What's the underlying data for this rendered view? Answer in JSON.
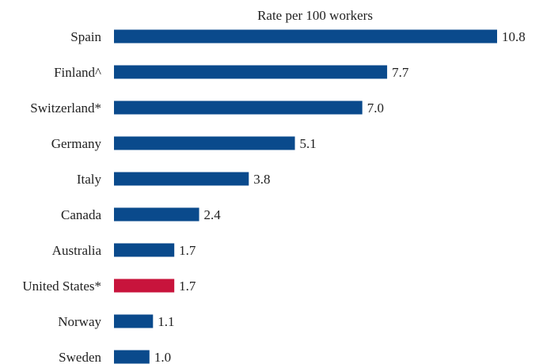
{
  "chart_data": {
    "type": "bar",
    "orientation": "horizontal",
    "title": "",
    "xlabel": "Rate per 100 workers",
    "ylabel": "",
    "categories": [
      "Spain",
      "Finland^",
      "Switzerland*",
      "Germany",
      "Italy",
      "Canada",
      "Australia",
      "United States*",
      "Norway",
      "Sweden"
    ],
    "values": [
      10.8,
      7.7,
      7.0,
      5.1,
      3.8,
      2.4,
      1.7,
      1.7,
      1.1,
      1.0
    ],
    "value_labels": [
      "10.8",
      "7.7",
      "7.0",
      "5.1",
      "3.8",
      "2.4",
      "1.7",
      "1.7",
      "1.1",
      "1.0"
    ],
    "xlim": [
      0,
      10.8
    ],
    "grid": false,
    "legend": "none",
    "colors": {
      "default": "#0a4a8c",
      "highlight": "#c8143c",
      "highlight_category": "United States*"
    }
  }
}
